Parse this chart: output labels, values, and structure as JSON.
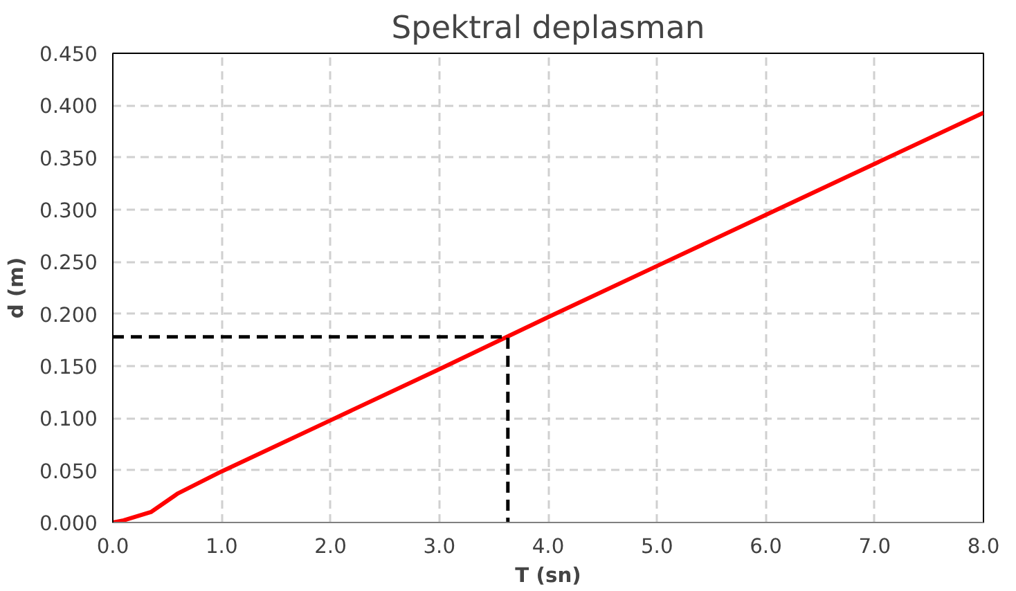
{
  "chart_data": {
    "type": "line",
    "title": "Spektral deplasman",
    "xlabel": "T (sn)",
    "ylabel": "d (m)",
    "series": [
      {
        "color": "#ff0000",
        "line_style": "solid",
        "x": [
          0,
          0.1,
          0.35,
          0.6,
          1,
          2,
          3,
          4,
          5,
          6,
          7,
          8
        ],
        "values": [
          0,
          0.002,
          0.01,
          0.028,
          0.049,
          0.098,
          0.147,
          0.197,
          0.246,
          0.295,
          0.344,
          0.393
        ]
      },
      {
        "color": "#000000",
        "line_style": "dashed",
        "x": [
          0,
          3.63,
          3.63
        ],
        "values": [
          0.178,
          0.178,
          0
        ]
      }
    ],
    "xlim": [
      0,
      8
    ],
    "ylim": [
      0,
      0.45
    ],
    "xticks": [
      {
        "value": 0,
        "label": "0.0"
      },
      {
        "value": 1,
        "label": "1.0"
      },
      {
        "value": 2,
        "label": "2.0"
      },
      {
        "value": 3,
        "label": "3.0"
      },
      {
        "value": 4,
        "label": "4.0"
      },
      {
        "value": 5,
        "label": "5.0"
      },
      {
        "value": 6,
        "label": "6.0"
      },
      {
        "value": 7,
        "label": "7.0"
      },
      {
        "value": 8,
        "label": "8.0"
      }
    ],
    "yticks": [
      {
        "value": 0,
        "label": "0.000"
      },
      {
        "value": 0.05,
        "label": "0.050"
      },
      {
        "value": 0.1,
        "label": "0.100"
      },
      {
        "value": 0.15,
        "label": "0.150"
      },
      {
        "value": 0.2,
        "label": "0.200"
      },
      {
        "value": 0.25,
        "label": "0.250"
      },
      {
        "value": 0.3,
        "label": "0.300"
      },
      {
        "value": 0.35,
        "label": "0.350"
      },
      {
        "value": 0.4,
        "label": "0.400"
      },
      {
        "value": 0.45,
        "label": "0.450"
      }
    ],
    "grid": true,
    "marker": "none"
  }
}
